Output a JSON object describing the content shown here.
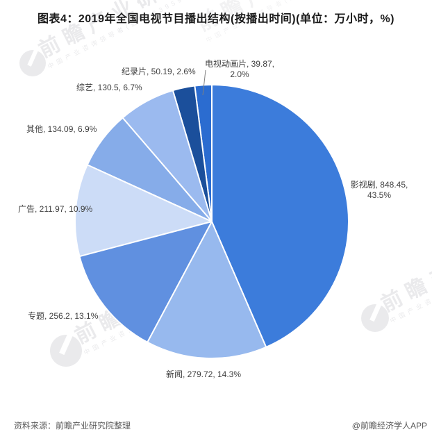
{
  "title": "图表4：2019年全国电视节目播出结构(按播出时间)(单位：万小时，%)",
  "chart_data": {
    "type": "pie",
    "title": "2019年全国电视节目播出结构(按播出时间)",
    "unit": "万小时，%",
    "start_angle_deg": 0,
    "direction": "clockwise",
    "legend": "none",
    "data_labels": "outside",
    "label_format": "名称, 数值, 百分比",
    "slices": [
      {
        "label": "影视剧",
        "value": 848.45,
        "percent": 43.5,
        "color": "#3C7CDB"
      },
      {
        "label": "新闻",
        "value": 279.72,
        "percent": 14.3,
        "color": "#97B9EE"
      },
      {
        "label": "专题",
        "value": 256.2,
        "percent": 13.1,
        "color": "#6090E0"
      },
      {
        "label": "广告",
        "value": 211.97,
        "percent": 10.9,
        "color": "#CCDCF7"
      },
      {
        "label": "其他",
        "value": 134.09,
        "percent": 6.9,
        "color": "#86ACE9"
      },
      {
        "label": "综艺",
        "value": 130.5,
        "percent": 6.7,
        "color": "#9BBAEF"
      },
      {
        "label": "纪录片",
        "value": 50.19,
        "percent": 2.6,
        "color": "#1B4F9B"
      },
      {
        "label": "电视动画片",
        "value": 39.87,
        "percent": 2.0,
        "color": "#2B6CD0"
      }
    ]
  },
  "footer": {
    "source": "资料来源：前瞻产业研究院整理",
    "credit": "@前瞻经济学人APP"
  },
  "watermark": {
    "brand": "前瞻产业研究院",
    "tagline": "中国产业咨询领导者(股票:839599)"
  }
}
